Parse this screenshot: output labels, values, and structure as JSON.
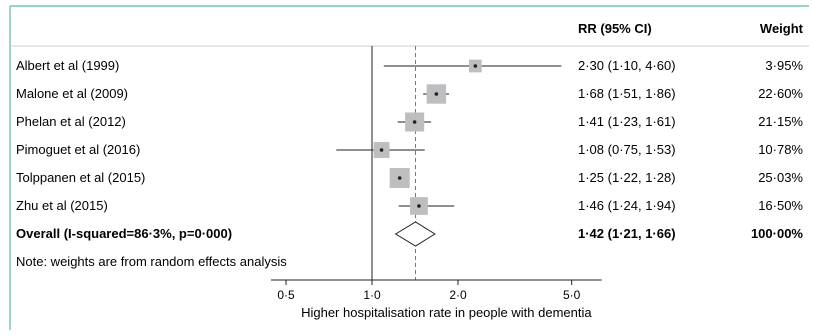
{
  "chart_data": {
    "type": "forest",
    "columns": {
      "estimate": "RR (95% CI)",
      "weight": "Weight"
    },
    "studies": [
      {
        "label": "Albert et al (1999)",
        "rr": 2.3,
        "lo": 1.1,
        "hi": 4.6,
        "ci_text": "2·30 (1·10, 4·60)",
        "weight": 3.95,
        "weight_text": "3·95%"
      },
      {
        "label": "Malone et al (2009)",
        "rr": 1.68,
        "lo": 1.51,
        "hi": 1.86,
        "ci_text": "1·68 (1·51, 1·86)",
        "weight": 22.6,
        "weight_text": "22·60%"
      },
      {
        "label": "Phelan et al (2012)",
        "rr": 1.41,
        "lo": 1.23,
        "hi": 1.61,
        "ci_text": "1·41 (1·23, 1·61)",
        "weight": 21.15,
        "weight_text": "21·15%"
      },
      {
        "label": "Pimoguet et al (2016)",
        "rr": 1.08,
        "lo": 0.75,
        "hi": 1.53,
        "ci_text": "1·08 (0·75, 1·53)",
        "weight": 10.78,
        "weight_text": "10·78%"
      },
      {
        "label": "Tolppanen et al (2015)",
        "rr": 1.25,
        "lo": 1.22,
        "hi": 1.28,
        "ci_text": "1·25 (1·22, 1·28)",
        "weight": 25.03,
        "weight_text": "25·03%"
      },
      {
        "label": "Zhu et al (2015)",
        "rr": 1.46,
        "lo": 1.24,
        "hi": 1.94,
        "ci_text": "1·46 (1·24, 1·94)",
        "weight": 16.5,
        "weight_text": "16·50%"
      }
    ],
    "overall": {
      "label": "Overall (I-squared=86·3%, p=0·000)",
      "rr": 1.42,
      "lo": 1.21,
      "hi": 1.66,
      "ci_text": "1·42 (1·21, 1·66)",
      "weight_text": "100·00%"
    },
    "note": "Note: weights are from random effects analysis",
    "x_scale": "log",
    "x_range": [
      0.4,
      6.5
    ],
    "null_value": 1.0,
    "ticks": [
      {
        "value": 0.5,
        "label": "0·5"
      },
      {
        "value": 1.0,
        "label": "1·0"
      },
      {
        "value": 2.0,
        "label": "2·0"
      },
      {
        "value": 5.0,
        "label": "5·0"
      }
    ],
    "xlabel": "Higher hospitalisation rate in people with dementia",
    "colors": {
      "frame": "#5fb8a5",
      "square": "#bcbec0",
      "line": "#231f20",
      "overall_line": "#5b7ea6"
    }
  }
}
